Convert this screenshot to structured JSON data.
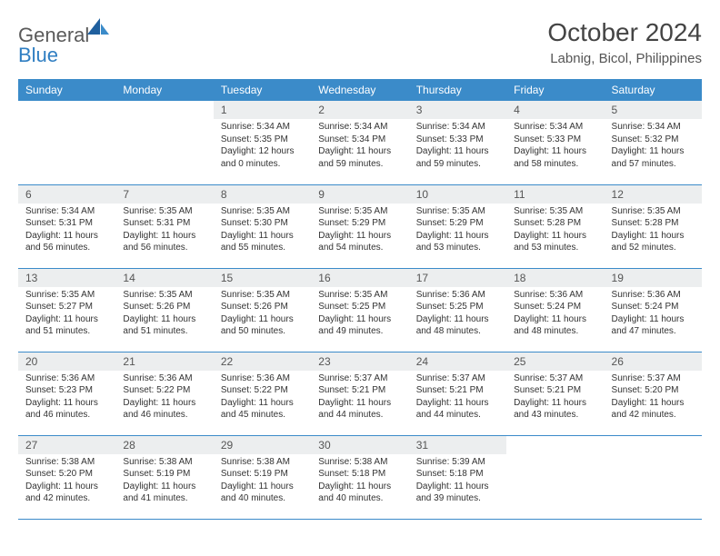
{
  "brand": {
    "part1": "General",
    "part2": "Blue"
  },
  "title": "October 2024",
  "location": "Labnig, Bicol, Philippines",
  "colors": {
    "header_bg": "#3b8bc9",
    "header_fg": "#ffffff",
    "daynum_bg": "#eceeef",
    "row_border": "#3b8bc9",
    "logo_gray": "#5a5a5a",
    "logo_blue": "#2f7ec2"
  },
  "typography": {
    "title_fontsize": 28,
    "location_fontsize": 15,
    "dayhead_fontsize": 12,
    "body_fontsize": 10
  },
  "day_headers": [
    "Sunday",
    "Monday",
    "Tuesday",
    "Wednesday",
    "Thursday",
    "Friday",
    "Saturday"
  ],
  "weeks": [
    [
      {
        "n": "",
        "sunrise": "",
        "sunset": "",
        "daylight": ""
      },
      {
        "n": "",
        "sunrise": "",
        "sunset": "",
        "daylight": ""
      },
      {
        "n": "1",
        "sunrise": "Sunrise: 5:34 AM",
        "sunset": "Sunset: 5:35 PM",
        "daylight": "Daylight: 12 hours and 0 minutes."
      },
      {
        "n": "2",
        "sunrise": "Sunrise: 5:34 AM",
        "sunset": "Sunset: 5:34 PM",
        "daylight": "Daylight: 11 hours and 59 minutes."
      },
      {
        "n": "3",
        "sunrise": "Sunrise: 5:34 AM",
        "sunset": "Sunset: 5:33 PM",
        "daylight": "Daylight: 11 hours and 59 minutes."
      },
      {
        "n": "4",
        "sunrise": "Sunrise: 5:34 AM",
        "sunset": "Sunset: 5:33 PM",
        "daylight": "Daylight: 11 hours and 58 minutes."
      },
      {
        "n": "5",
        "sunrise": "Sunrise: 5:34 AM",
        "sunset": "Sunset: 5:32 PM",
        "daylight": "Daylight: 11 hours and 57 minutes."
      }
    ],
    [
      {
        "n": "6",
        "sunrise": "Sunrise: 5:34 AM",
        "sunset": "Sunset: 5:31 PM",
        "daylight": "Daylight: 11 hours and 56 minutes."
      },
      {
        "n": "7",
        "sunrise": "Sunrise: 5:35 AM",
        "sunset": "Sunset: 5:31 PM",
        "daylight": "Daylight: 11 hours and 56 minutes."
      },
      {
        "n": "8",
        "sunrise": "Sunrise: 5:35 AM",
        "sunset": "Sunset: 5:30 PM",
        "daylight": "Daylight: 11 hours and 55 minutes."
      },
      {
        "n": "9",
        "sunrise": "Sunrise: 5:35 AM",
        "sunset": "Sunset: 5:29 PM",
        "daylight": "Daylight: 11 hours and 54 minutes."
      },
      {
        "n": "10",
        "sunrise": "Sunrise: 5:35 AM",
        "sunset": "Sunset: 5:29 PM",
        "daylight": "Daylight: 11 hours and 53 minutes."
      },
      {
        "n": "11",
        "sunrise": "Sunrise: 5:35 AM",
        "sunset": "Sunset: 5:28 PM",
        "daylight": "Daylight: 11 hours and 53 minutes."
      },
      {
        "n": "12",
        "sunrise": "Sunrise: 5:35 AM",
        "sunset": "Sunset: 5:28 PM",
        "daylight": "Daylight: 11 hours and 52 minutes."
      }
    ],
    [
      {
        "n": "13",
        "sunrise": "Sunrise: 5:35 AM",
        "sunset": "Sunset: 5:27 PM",
        "daylight": "Daylight: 11 hours and 51 minutes."
      },
      {
        "n": "14",
        "sunrise": "Sunrise: 5:35 AM",
        "sunset": "Sunset: 5:26 PM",
        "daylight": "Daylight: 11 hours and 51 minutes."
      },
      {
        "n": "15",
        "sunrise": "Sunrise: 5:35 AM",
        "sunset": "Sunset: 5:26 PM",
        "daylight": "Daylight: 11 hours and 50 minutes."
      },
      {
        "n": "16",
        "sunrise": "Sunrise: 5:35 AM",
        "sunset": "Sunset: 5:25 PM",
        "daylight": "Daylight: 11 hours and 49 minutes."
      },
      {
        "n": "17",
        "sunrise": "Sunrise: 5:36 AM",
        "sunset": "Sunset: 5:25 PM",
        "daylight": "Daylight: 11 hours and 48 minutes."
      },
      {
        "n": "18",
        "sunrise": "Sunrise: 5:36 AM",
        "sunset": "Sunset: 5:24 PM",
        "daylight": "Daylight: 11 hours and 48 minutes."
      },
      {
        "n": "19",
        "sunrise": "Sunrise: 5:36 AM",
        "sunset": "Sunset: 5:24 PM",
        "daylight": "Daylight: 11 hours and 47 minutes."
      }
    ],
    [
      {
        "n": "20",
        "sunrise": "Sunrise: 5:36 AM",
        "sunset": "Sunset: 5:23 PM",
        "daylight": "Daylight: 11 hours and 46 minutes."
      },
      {
        "n": "21",
        "sunrise": "Sunrise: 5:36 AM",
        "sunset": "Sunset: 5:22 PM",
        "daylight": "Daylight: 11 hours and 46 minutes."
      },
      {
        "n": "22",
        "sunrise": "Sunrise: 5:36 AM",
        "sunset": "Sunset: 5:22 PM",
        "daylight": "Daylight: 11 hours and 45 minutes."
      },
      {
        "n": "23",
        "sunrise": "Sunrise: 5:37 AM",
        "sunset": "Sunset: 5:21 PM",
        "daylight": "Daylight: 11 hours and 44 minutes."
      },
      {
        "n": "24",
        "sunrise": "Sunrise: 5:37 AM",
        "sunset": "Sunset: 5:21 PM",
        "daylight": "Daylight: 11 hours and 44 minutes."
      },
      {
        "n": "25",
        "sunrise": "Sunrise: 5:37 AM",
        "sunset": "Sunset: 5:21 PM",
        "daylight": "Daylight: 11 hours and 43 minutes."
      },
      {
        "n": "26",
        "sunrise": "Sunrise: 5:37 AM",
        "sunset": "Sunset: 5:20 PM",
        "daylight": "Daylight: 11 hours and 42 minutes."
      }
    ],
    [
      {
        "n": "27",
        "sunrise": "Sunrise: 5:38 AM",
        "sunset": "Sunset: 5:20 PM",
        "daylight": "Daylight: 11 hours and 42 minutes."
      },
      {
        "n": "28",
        "sunrise": "Sunrise: 5:38 AM",
        "sunset": "Sunset: 5:19 PM",
        "daylight": "Daylight: 11 hours and 41 minutes."
      },
      {
        "n": "29",
        "sunrise": "Sunrise: 5:38 AM",
        "sunset": "Sunset: 5:19 PM",
        "daylight": "Daylight: 11 hours and 40 minutes."
      },
      {
        "n": "30",
        "sunrise": "Sunrise: 5:38 AM",
        "sunset": "Sunset: 5:18 PM",
        "daylight": "Daylight: 11 hours and 40 minutes."
      },
      {
        "n": "31",
        "sunrise": "Sunrise: 5:39 AM",
        "sunset": "Sunset: 5:18 PM",
        "daylight": "Daylight: 11 hours and 39 minutes."
      },
      {
        "n": "",
        "sunrise": "",
        "sunset": "",
        "daylight": ""
      },
      {
        "n": "",
        "sunrise": "",
        "sunset": "",
        "daylight": ""
      }
    ]
  ]
}
